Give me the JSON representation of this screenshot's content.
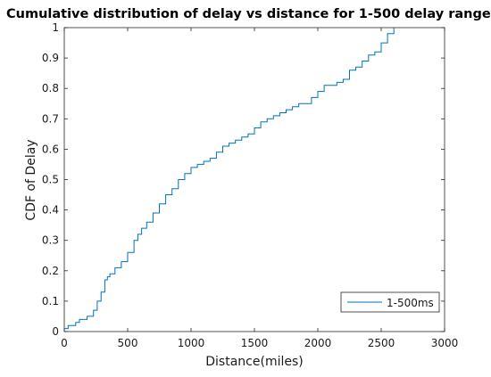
{
  "chart_data": {
    "type": "line",
    "step": true,
    "title": "Cumulative distribution of delay vs distance for 1-500 delay range",
    "xlabel": "Distance(miles)",
    "ylabel": "CDF of Delay",
    "xlim": [
      0,
      3000
    ],
    "ylim": [
      0,
      1
    ],
    "xticks": [
      0,
      500,
      1000,
      1500,
      2000,
      2500,
      3000
    ],
    "yticks": [
      0,
      0.1,
      0.2,
      0.3,
      0.4,
      0.5,
      0.6,
      0.7,
      0.8,
      0.9,
      1
    ],
    "grid": false,
    "legend_position": "bottom-right",
    "series": [
      {
        "name": "1-500ms",
        "color": "#0072bd",
        "x": [
          0,
          30,
          60,
          90,
          120,
          180,
          230,
          260,
          290,
          320,
          340,
          360,
          400,
          450,
          500,
          550,
          580,
          610,
          650,
          700,
          750,
          800,
          850,
          900,
          950,
          1000,
          1050,
          1100,
          1150,
          1200,
          1250,
          1300,
          1350,
          1400,
          1450,
          1500,
          1550,
          1600,
          1650,
          1700,
          1750,
          1800,
          1850,
          1900,
          1950,
          2000,
          2050,
          2100,
          2150,
          2200,
          2250,
          2300,
          2350,
          2400,
          2450,
          2500,
          2550,
          2600
        ],
        "y": [
          0.01,
          0.02,
          0.02,
          0.03,
          0.04,
          0.05,
          0.07,
          0.1,
          0.13,
          0.17,
          0.18,
          0.19,
          0.21,
          0.23,
          0.26,
          0.3,
          0.32,
          0.34,
          0.36,
          0.39,
          0.42,
          0.45,
          0.47,
          0.5,
          0.52,
          0.54,
          0.55,
          0.56,
          0.57,
          0.59,
          0.61,
          0.62,
          0.63,
          0.64,
          0.65,
          0.67,
          0.69,
          0.7,
          0.71,
          0.72,
          0.73,
          0.74,
          0.75,
          0.75,
          0.77,
          0.79,
          0.81,
          0.81,
          0.82,
          0.83,
          0.86,
          0.87,
          0.89,
          0.91,
          0.92,
          0.95,
          0.98,
          1.0
        ]
      }
    ]
  }
}
